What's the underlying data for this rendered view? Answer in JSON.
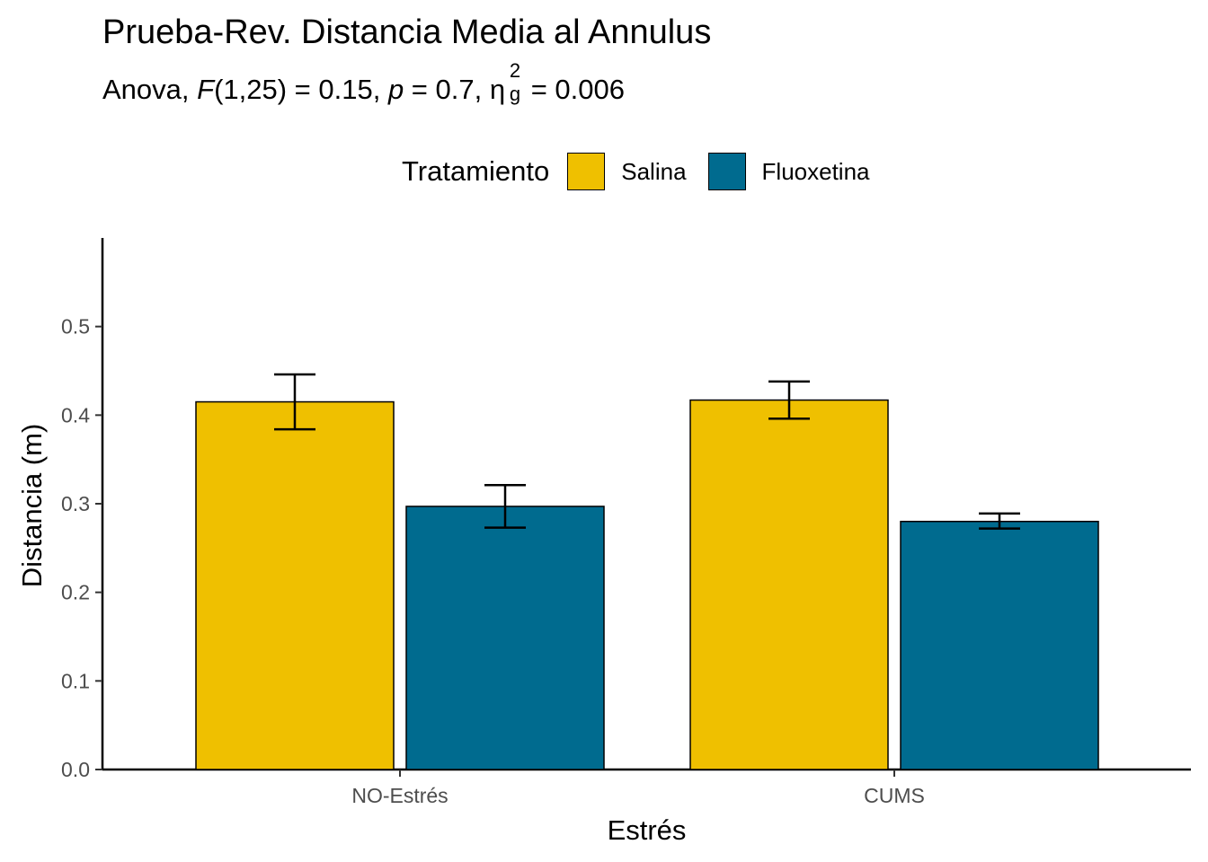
{
  "chart_data": {
    "type": "bar",
    "title": "Prueba-Rev. Distancia Media al Annulus",
    "subtitle": {
      "prefix": "Anova, ",
      "F_symbol": "F",
      "F_value": "(1,25) = 0.15, ",
      "p_symbol": "p",
      "p_value": " = 0.7, ",
      "eta_symbol": "η",
      "eta_sub": "g",
      "eta_sup": "2",
      "eta_value": " = 0.006"
    },
    "xlabel": "Estrés",
    "ylabel": "Distancia (m)",
    "categories": [
      "NO-Estrés",
      "CUMS"
    ],
    "legend_title": "Tratamiento",
    "legend_position": "top",
    "series": [
      {
        "name": "Salina",
        "color": "#EFC000",
        "values": [
          0.415,
          0.417
        ],
        "error_low": [
          0.384,
          0.396
        ],
        "error_high": [
          0.446,
          0.438
        ]
      },
      {
        "name": "Fluoxetina",
        "color": "#006B8F",
        "values": [
          0.297,
          0.28
        ],
        "error_low": [
          0.273,
          0.272
        ],
        "error_high": [
          0.321,
          0.289
        ]
      }
    ],
    "ylim": [
      0,
      0.6
    ],
    "yticks": [
      0.0,
      0.1,
      0.2,
      0.3,
      0.4,
      0.5
    ],
    "ytick_labels": [
      "0.0",
      "0.1",
      "0.2",
      "0.3",
      "0.4",
      "0.5"
    ],
    "grid": false
  }
}
